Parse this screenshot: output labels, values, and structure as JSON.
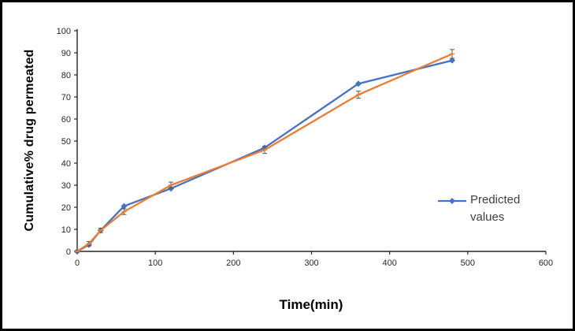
{
  "frame": {
    "background": "#ffffff",
    "border_color": "#000000"
  },
  "chart_data": {
    "type": "line",
    "title": "",
    "xlabel": "Time(min)",
    "ylabel": "Cumulative% drug permeated",
    "xlim": [
      0,
      600
    ],
    "ylim": [
      0,
      100
    ],
    "xticks": [
      0,
      100,
      200,
      300,
      400,
      500,
      600
    ],
    "yticks": [
      0,
      10,
      20,
      30,
      40,
      50,
      60,
      70,
      80,
      90,
      100
    ],
    "grid": false,
    "legend_position": "right",
    "axis_color": "#262626",
    "error_bar_color": "#595959",
    "x": [
      0,
      15,
      30,
      60,
      120,
      240,
      360,
      480
    ],
    "series": [
      {
        "name": "Predicted values",
        "color": "#4472C4",
        "marker": "diamond",
        "in_legend": true,
        "values": [
          0,
          3,
          9.5,
          20.5,
          28.5,
          47,
          76,
          86.5
        ]
      },
      {
        "name": "",
        "color": "#ED7D31",
        "marker": "dash",
        "in_legend": false,
        "values": [
          0,
          3.5,
          9.5,
          18,
          30,
          46,
          71,
          89.5
        ],
        "error": [
          0.4,
          1,
          1,
          1.3,
          1.4,
          1.6,
          1.6,
          2
        ]
      }
    ]
  }
}
